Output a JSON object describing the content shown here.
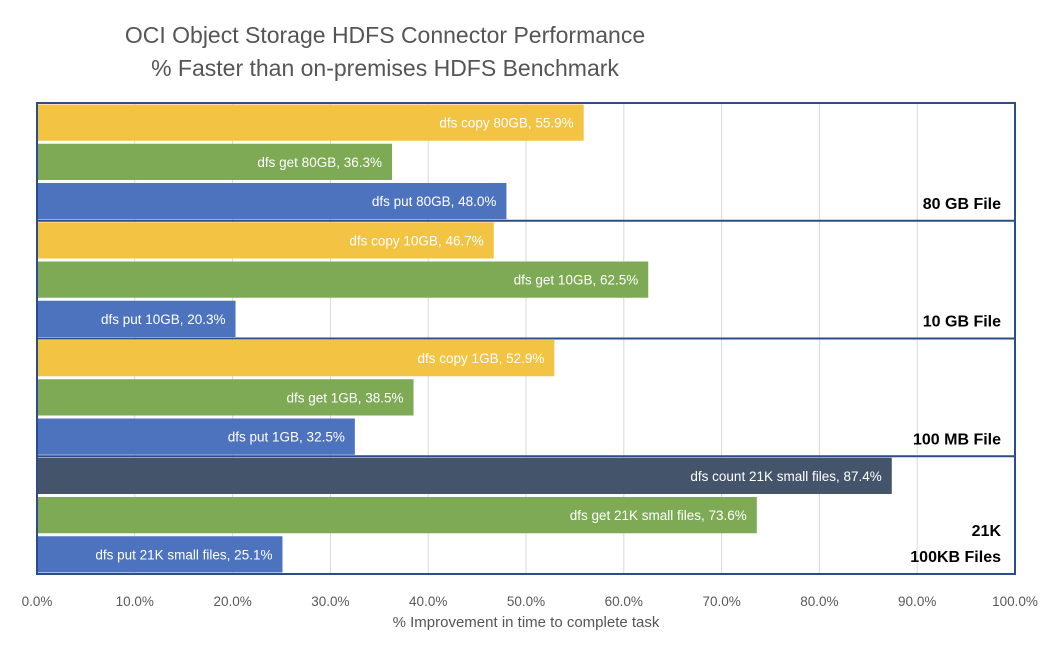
{
  "chart_data": {
    "type": "bar",
    "orientation": "horizontal",
    "title": "OCI Object Storage HDFS Connector Performance",
    "subtitle": "% Faster than on-premises HDFS Benchmark",
    "xlabel": "% Improvement in time to complete task",
    "xlim": [
      0,
      100
    ],
    "xticks": [
      "0.0%",
      "10.0%",
      "20.0%",
      "30.0%",
      "40.0%",
      "50.0%",
      "60.0%",
      "70.0%",
      "80.0%",
      "90.0%",
      "100.0%"
    ],
    "grid": true,
    "colors": {
      "copy": "#F3C343",
      "get": "#7EAA55",
      "put": "#4E73BE",
      "count": "#44546A",
      "border": "#2E4B8C"
    },
    "groups": [
      {
        "label": [
          "80 GB File"
        ],
        "bars": [
          {
            "label": "dfs copy 80GB, 55.9%",
            "value": 55.9,
            "kind": "copy"
          },
          {
            "label": "dfs get 80GB, 36.3%",
            "value": 36.3,
            "kind": "get"
          },
          {
            "label": "dfs put 80GB, 48.0%",
            "value": 48.0,
            "kind": "put"
          }
        ]
      },
      {
        "label": [
          "10 GB File"
        ],
        "bars": [
          {
            "label": "dfs copy 10GB, 46.7%",
            "value": 46.7,
            "kind": "copy"
          },
          {
            "label": "dfs get 10GB, 62.5%",
            "value": 62.5,
            "kind": "get"
          },
          {
            "label": "dfs put 10GB, 20.3%",
            "value": 20.3,
            "kind": "put"
          }
        ]
      },
      {
        "label": [
          "100 MB File"
        ],
        "bars": [
          {
            "label": "dfs copy 1GB, 52.9%",
            "value": 52.9,
            "kind": "copy"
          },
          {
            "label": "dfs get 1GB, 38.5%",
            "value": 38.5,
            "kind": "get"
          },
          {
            "label": "dfs put 1GB, 32.5%",
            "value": 32.5,
            "kind": "put"
          }
        ]
      },
      {
        "label": [
          "21K",
          "100KB Files"
        ],
        "bars": [
          {
            "label": "dfs count 21K small files, 87.4%",
            "value": 87.4,
            "kind": "count"
          },
          {
            "label": "dfs get 21K small files, 73.6%",
            "value": 73.6,
            "kind": "get"
          },
          {
            "label": "dfs put 21K small files, 25.1%",
            "value": 25.1,
            "kind": "put"
          }
        ]
      }
    ]
  }
}
